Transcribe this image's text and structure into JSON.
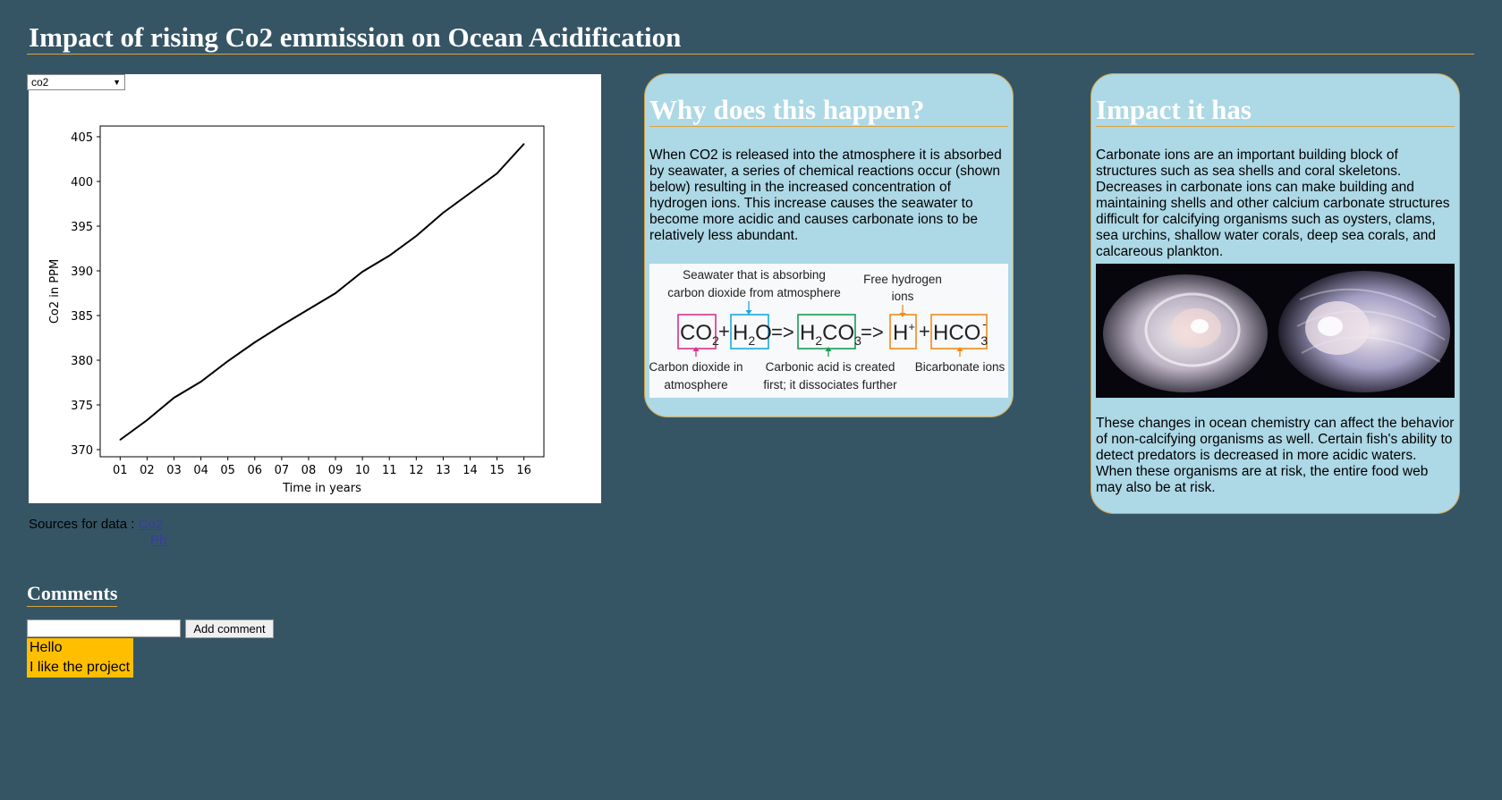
{
  "page": {
    "title": "Impact of rising Co2 emmission on Ocean Acidification"
  },
  "chart_panel": {
    "select_value": "co2"
  },
  "chart_data": {
    "type": "line",
    "xlabel": "Time in years",
    "ylabel": "Co2 in PPM",
    "categories": [
      "01",
      "02",
      "03",
      "04",
      "05",
      "06",
      "07",
      "08",
      "09",
      "10",
      "11",
      "12",
      "13",
      "14",
      "15",
      "16"
    ],
    "values": [
      371.1,
      373.3,
      375.8,
      377.6,
      379.9,
      382.0,
      383.9,
      385.7,
      387.5,
      389.9,
      391.7,
      393.9,
      396.5,
      398.7,
      400.9,
      404.2
    ],
    "ylim": [
      369.2,
      406.2
    ],
    "yticks": [
      370,
      375,
      380,
      385,
      390,
      395,
      400,
      405
    ],
    "line_color": "#000000",
    "grid": false
  },
  "sources": {
    "label": "Sources for data :",
    "links": [
      "Co2",
      "Ph"
    ]
  },
  "comments": {
    "title": "Comments",
    "input_value": "",
    "button_label": "Add comment",
    "items": [
      "Hello",
      "I like the project"
    ],
    "highlight_color": "#ffbf00"
  },
  "why_card": {
    "title": "Why does this happen?",
    "text": "When CO2 is released into the atmosphere it is absorbed by seawater, a series of chemical reactions occur (shown below) resulting in the increased concentration of hydrogen ions. This increase causes the seawater to become more acidic and causes carbonate ions to be relatively less abundant.",
    "diagram": {
      "label_seawater_1": "Seawater that is absorbing",
      "label_seawater_2": "carbon dioxide from atmosphere",
      "label_hydrogen_1": "Free hydrogen",
      "label_hydrogen_2": "ions",
      "label_co2_1": "Carbon dioxide in",
      "label_co2_2": "atmosphere",
      "label_acid_1": "Carbonic acid is created",
      "label_acid_2": "first; it dissociates further",
      "label_bicarbonate": "Bicarbonate ions",
      "plus": "+",
      "arrow": "=>",
      "co2_main": "CO",
      "co2_sub": "2",
      "h2o_h": "H",
      "h2o_sub": "2",
      "h2o_o": "O",
      "h2co3_h": "H",
      "h2co3_sub1": "2",
      "h2co3_co": "CO",
      "h2co3_sub2": "3",
      "h_main": "H",
      "h_sup": "+",
      "hco3_main": "HCO",
      "hco3_sub": "3",
      "hco3_sup": "-",
      "colors": {
        "co2": "#d6338a",
        "h2o": "#1ba7de",
        "h2co3": "#1a9a55",
        "hplus": "#f08a1c",
        "hco3": "#f08a1c"
      }
    }
  },
  "impact_card": {
    "title": "Impact it has",
    "text1": "Carbonate ions are an important building block of structures such as sea shells and coral skeletons. Decreases in carbonate ions can make building and maintaining shells and other calcium carbonate structures difficult for calcifying organisms such as oysters, clams, sea urchins, shallow water corals, deep sea corals, and calcareous plankton.",
    "text2": "These changes in ocean chemistry can affect the behavior of non-calcifying organisms as well. Certain fish's ability to detect predators is decreased in more acidic waters. When these organisms are at risk, the entire food web may also be at risk."
  }
}
